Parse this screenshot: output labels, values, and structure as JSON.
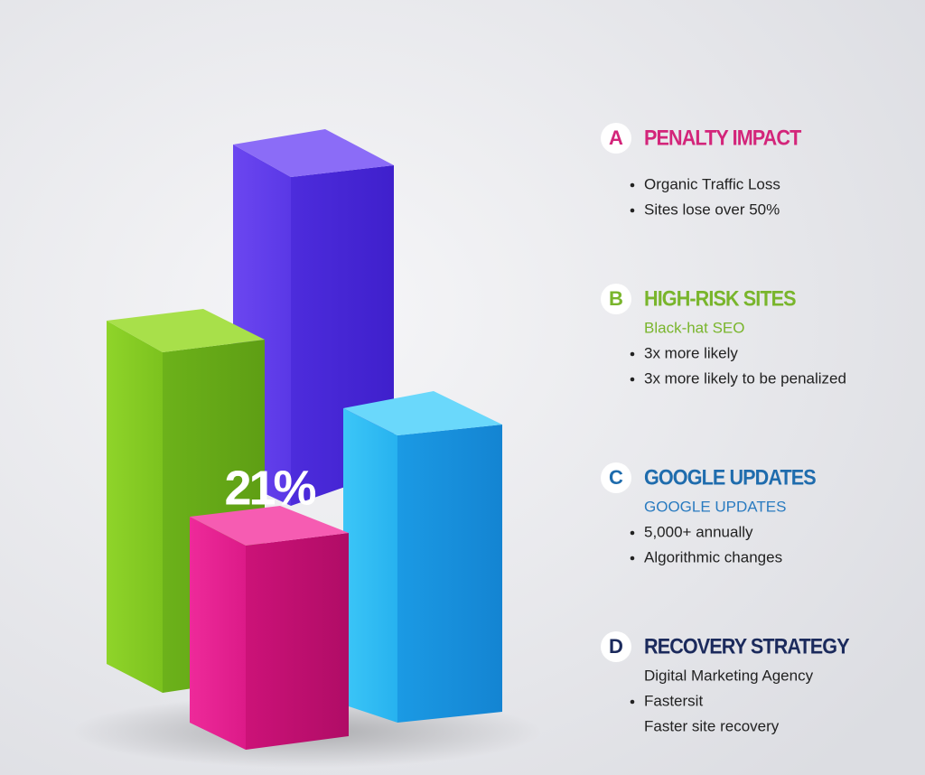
{
  "bar_label": "21%",
  "sections": [
    {
      "letter": "A",
      "title": "PENALTY IMPACT",
      "color": "#d3257a",
      "lines": [
        {
          "text": "Organic Traffic Loss",
          "bullet": true
        },
        {
          "text": "Sites lose over 50%",
          "bullet": true
        }
      ]
    },
    {
      "letter": "B",
      "title": "HIGH-RISK SITES",
      "color": "#79b52c",
      "subtitle": "Black-hat SEO",
      "subtitle_color": "#79b52c",
      "lines": [
        {
          "text": "3x more likely",
          "bullet": true
        },
        {
          "text": "3x more likely to be penalized",
          "bullet": true
        }
      ]
    },
    {
      "letter": "C",
      "title": "GOOGLE UPDATES",
      "color": "#1f6cad",
      "subtitle": "GOOGLE UPDATES",
      "subtitle_color": "#2a7bc0",
      "lines": [
        {
          "text": "5,000+ annually",
          "bullet": true
        },
        {
          "text": "Algorithmic changes",
          "bullet": true
        }
      ]
    },
    {
      "letter": "D",
      "title": "RECOVERY STRATEGY",
      "color": "#1b2a5c",
      "subtitle": "Digital Marketing Agency",
      "subtitle_color": "#222222",
      "lines": [
        {
          "text": "Fastersit",
          "bullet": true
        },
        {
          "text": "Faster site recovery",
          "bullet": false
        }
      ]
    }
  ]
}
